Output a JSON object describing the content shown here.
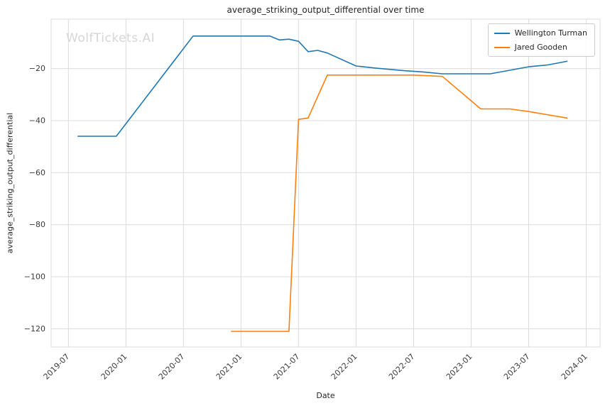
{
  "chart_data": {
    "type": "line",
    "title": "average_striking_output_differential over time",
    "xlabel": "Date",
    "ylabel": "average_striking_output_differential",
    "watermark": "WolfTickets.AI",
    "legend_position": "upper right",
    "grid": true,
    "grid_color": "#dcdcdc",
    "tick_label_color": "#3a3a3a",
    "xlim": [
      2019.35,
      2024.12
    ],
    "ylim": [
      -127,
      -1
    ],
    "x_ticks": [
      {
        "value": 2019.5,
        "label": "2019-07"
      },
      {
        "value": 2020.0,
        "label": "2020-01"
      },
      {
        "value": 2020.5,
        "label": "2020-07"
      },
      {
        "value": 2021.0,
        "label": "2021-01"
      },
      {
        "value": 2021.5,
        "label": "2021-07"
      },
      {
        "value": 2022.0,
        "label": "2022-01"
      },
      {
        "value": 2022.5,
        "label": "2022-07"
      },
      {
        "value": 2023.0,
        "label": "2023-01"
      },
      {
        "value": 2023.5,
        "label": "2023-07"
      },
      {
        "value": 2024.0,
        "label": "2024-01"
      }
    ],
    "y_ticks": [
      {
        "value": -20,
        "label": "−20"
      },
      {
        "value": -40,
        "label": "−40"
      },
      {
        "value": -60,
        "label": "−60"
      },
      {
        "value": -80,
        "label": "−80"
      },
      {
        "value": -100,
        "label": "−100"
      },
      {
        "value": -120,
        "label": "−120"
      }
    ],
    "series": [
      {
        "name": "Wellington Turman",
        "color": "#1f77b4",
        "x": [
          "2019-08",
          "2019-12",
          "2020-08",
          "2021-04",
          "2021-05",
          "2021-06",
          "2021-07",
          "2021-08",
          "2021-09",
          "2021-10",
          "2022-01",
          "2022-03",
          "2022-06",
          "2022-08",
          "2022-10",
          "2023-03",
          "2023-07",
          "2023-09",
          "2023-11"
        ],
        "y": [
          -46,
          -46,
          -7.5,
          -7.5,
          -9,
          -8.7,
          -9.5,
          -13.5,
          -13,
          -14,
          -19,
          -19.8,
          -20.8,
          -21.3,
          -22,
          -22,
          -19.3,
          -18.6,
          -17.2
        ]
      },
      {
        "name": "Jared Gooden",
        "color": "#ff7f0e",
        "x": [
          "2020-12",
          "2021-06",
          "2021-07",
          "2021-08",
          "2021-10",
          "2022-07",
          "2022-10",
          "2023-02",
          "2023-05",
          "2023-07",
          "2023-11"
        ],
        "y": [
          -121,
          -121,
          -39.5,
          -39,
          -22.5,
          -22.5,
          -23,
          -35.5,
          -35.5,
          -36.5,
          -39
        ]
      }
    ]
  }
}
